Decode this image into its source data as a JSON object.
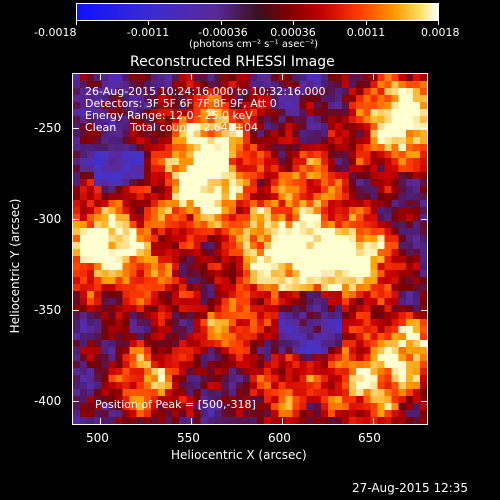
{
  "colorbar": {
    "ticks": [
      "-0.0018",
      "-0.0011",
      "-0.00036",
      "0.00036",
      "0.0011",
      "0.0018"
    ],
    "units": "(photons cm⁻² s⁻¹ asec⁻²)"
  },
  "title": "Reconstructed RHESSI Image",
  "info": {
    "line1": "26-Aug-2015 10:24:16.000 to 10:32:16.000",
    "line2": "Detectors: 3F 5F 6F 7F 8F 9F, Att 0",
    "line3": "Energy Range: 12.0 - 25.0 keV",
    "line4": "Clean    Total counts: 2.64E+04",
    "peak": "Position of Peak = [500,-318]"
  },
  "axes": {
    "xlabel": "Heliocentric X (arcsec)",
    "ylabel": "Heliocentric Y (arcsec)",
    "xticks": [
      "500",
      "550",
      "600",
      "650"
    ],
    "yticks": [
      "-250",
      "-300",
      "-350",
      "-400"
    ]
  },
  "footer": {
    "timestamp": "27-Aug-2015 12:35"
  },
  "colors": {
    "background": "#000000",
    "text": "#ffffff"
  }
}
